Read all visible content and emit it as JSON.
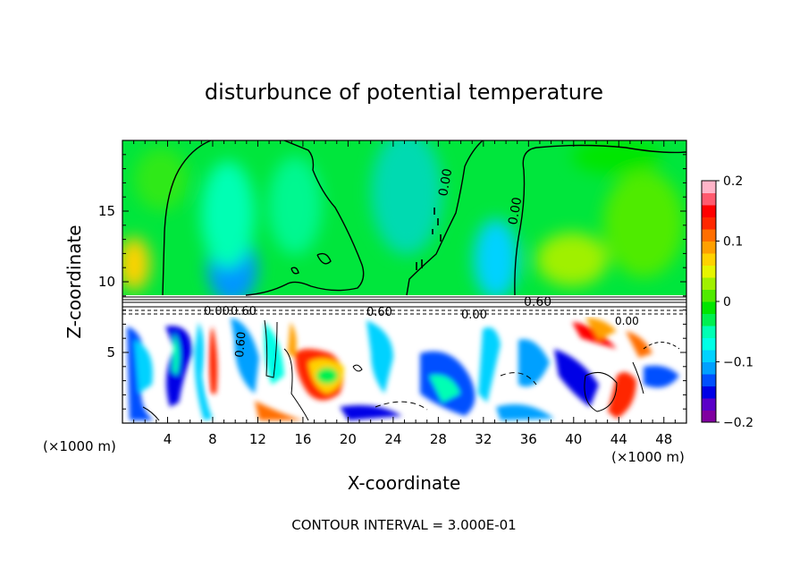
{
  "chart_data": {
    "type": "heatmap",
    "title": "disturbunce of potential temperature",
    "xlabel": "X-coordinate",
    "ylabel": "Z-coordinate",
    "x_unit_label": "(×1000 m)",
    "xlim": [
      0,
      50
    ],
    "ylim": [
      0,
      20
    ],
    "x_ticks": [
      4,
      8,
      12,
      16,
      20,
      24,
      28,
      32,
      36,
      40,
      44,
      48
    ],
    "y_ticks": [
      5,
      10,
      15
    ],
    "colorbar": {
      "range": [
        -0.2,
        0.2
      ],
      "tick_labels": [
        "0.2",
        "0.1",
        "0",
        "−0.1",
        "−0.2"
      ],
      "tick_values": [
        0.2,
        0.1,
        0,
        -0.1,
        -0.2
      ],
      "colors": [
        "#8000a0",
        "#5a00c8",
        "#0000e6",
        "#0050ff",
        "#00a0ff",
        "#00d2ff",
        "#00ffe6",
        "#00ffb4",
        "#00f050",
        "#00e600",
        "#50eb00",
        "#a0f000",
        "#e6f500",
        "#ffd200",
        "#ffa000",
        "#ff6e00",
        "#ff2800",
        "#ff0000",
        "#ff5a6e",
        "#ffb4c8"
      ]
    },
    "contour_labels": [
      "0.00",
      "0.00",
      "0.60",
      "0.00",
      "0.60",
      "0.00",
      "0.60",
      "0.60",
      "0.00"
    ],
    "footnote": "CONTOUR INTERVAL = 3.000E-01"
  }
}
